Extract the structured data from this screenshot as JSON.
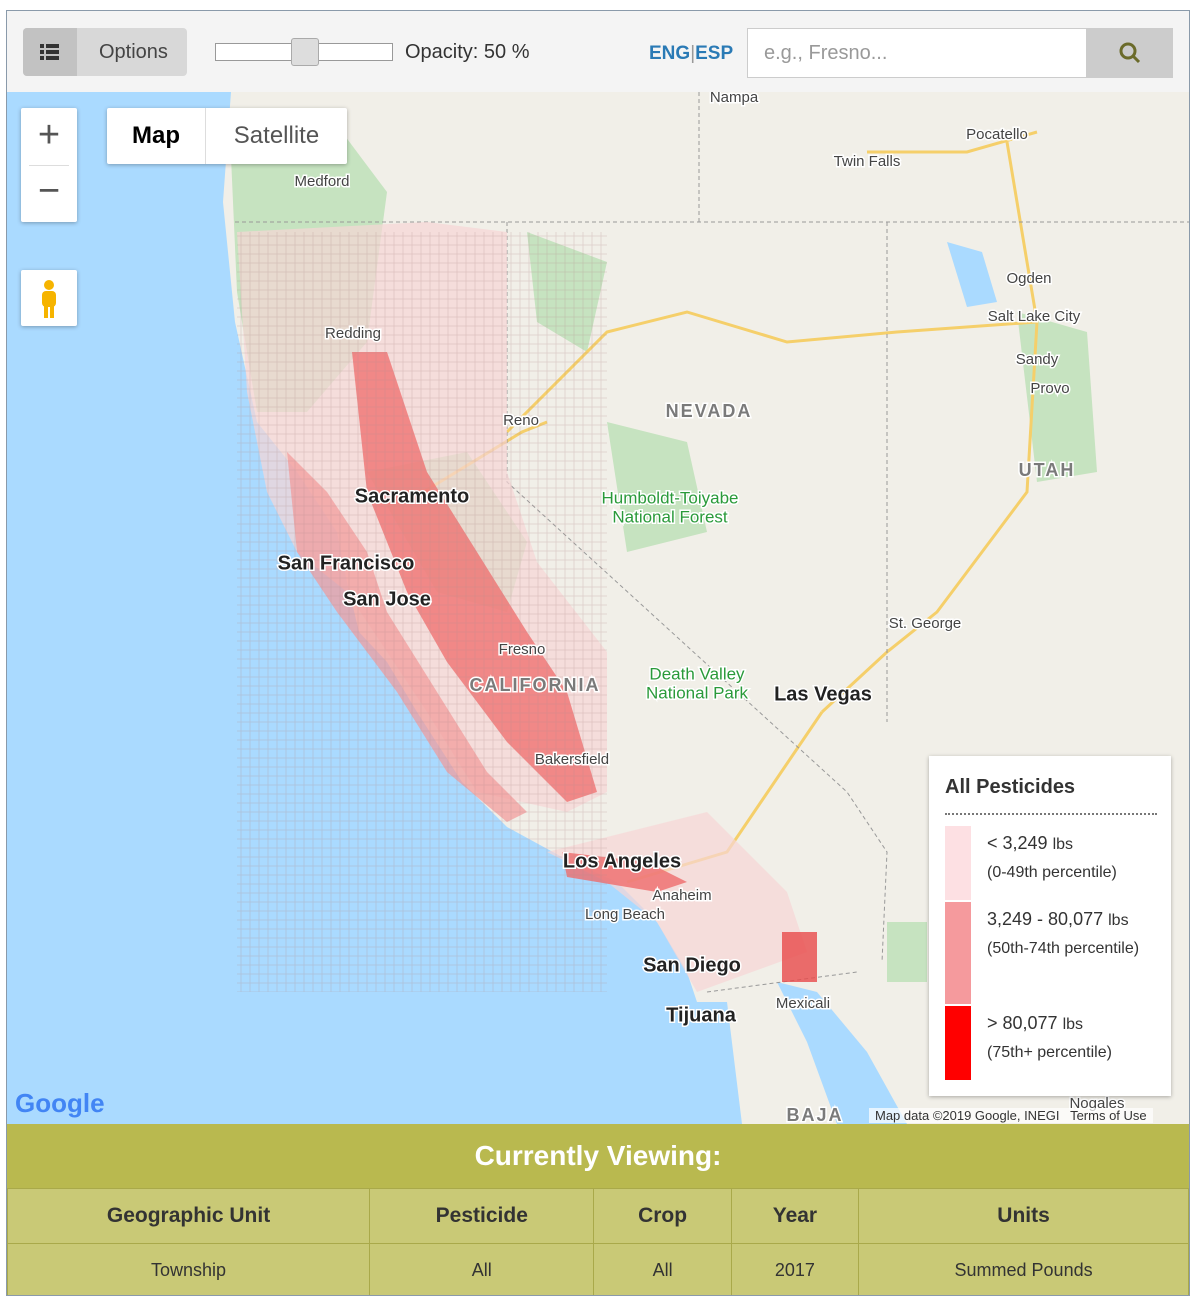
{
  "toolbar": {
    "options_label": "Options",
    "opacity_label": "Opacity:",
    "opacity_value": 50,
    "opacity_unit": "%",
    "lang_eng": "ENG",
    "lang_sep": "|",
    "lang_esp": "ESP",
    "search_placeholder": "e.g., Fresno..."
  },
  "map": {
    "type_map": "Map",
    "type_satellite": "Satellite",
    "zoom_in": "+",
    "zoom_out": "−",
    "labels": [
      "Nampa",
      "Pocatello",
      "Twin Falls",
      "Medford",
      "Ogden",
      "Salt Lake City",
      "Redding",
      "Sandy",
      "Provo",
      "Reno",
      "NEVADA",
      "UTAH",
      "Humboldt-Toiyabe",
      "National Forest",
      "Sacramento",
      "San Francisco",
      "San Jose",
      "Fresno",
      "CALIFORNIA",
      "Death Valley",
      "National Park",
      "Las Vegas",
      "St. George",
      "Bakersfield",
      "Los Angeles",
      "Anaheim",
      "Long Beach",
      "San Diego",
      "Tijuana",
      "Mexicali",
      "Nogales",
      "BAJA"
    ],
    "google": "Google",
    "attribution": "Map data ©2019 Google, INEGI",
    "terms": "Terms of Use"
  },
  "legend": {
    "title": "All Pesticides",
    "items": [
      {
        "range": "< 3,249",
        "unit": "lbs",
        "percentile": "(0-49th percentile)",
        "color": "#fde0e3"
      },
      {
        "range": "3,249 - 80,077",
        "unit": "lbs",
        "percentile": "(50th-74th percentile)",
        "color": "#f59a9d"
      },
      {
        "range": "> 80,077",
        "unit": "lbs",
        "percentile": "(75th+ percentile)",
        "color": "#ff0000"
      }
    ]
  },
  "footer": {
    "title": "Currently Viewing:",
    "table": {
      "header": [
        "Geographic Unit",
        "Pesticide",
        "Crop",
        "Year",
        "Units"
      ],
      "rows": [
        [
          "Township",
          "All",
          "All",
          "2017",
          "Summed Pounds"
        ]
      ]
    }
  }
}
